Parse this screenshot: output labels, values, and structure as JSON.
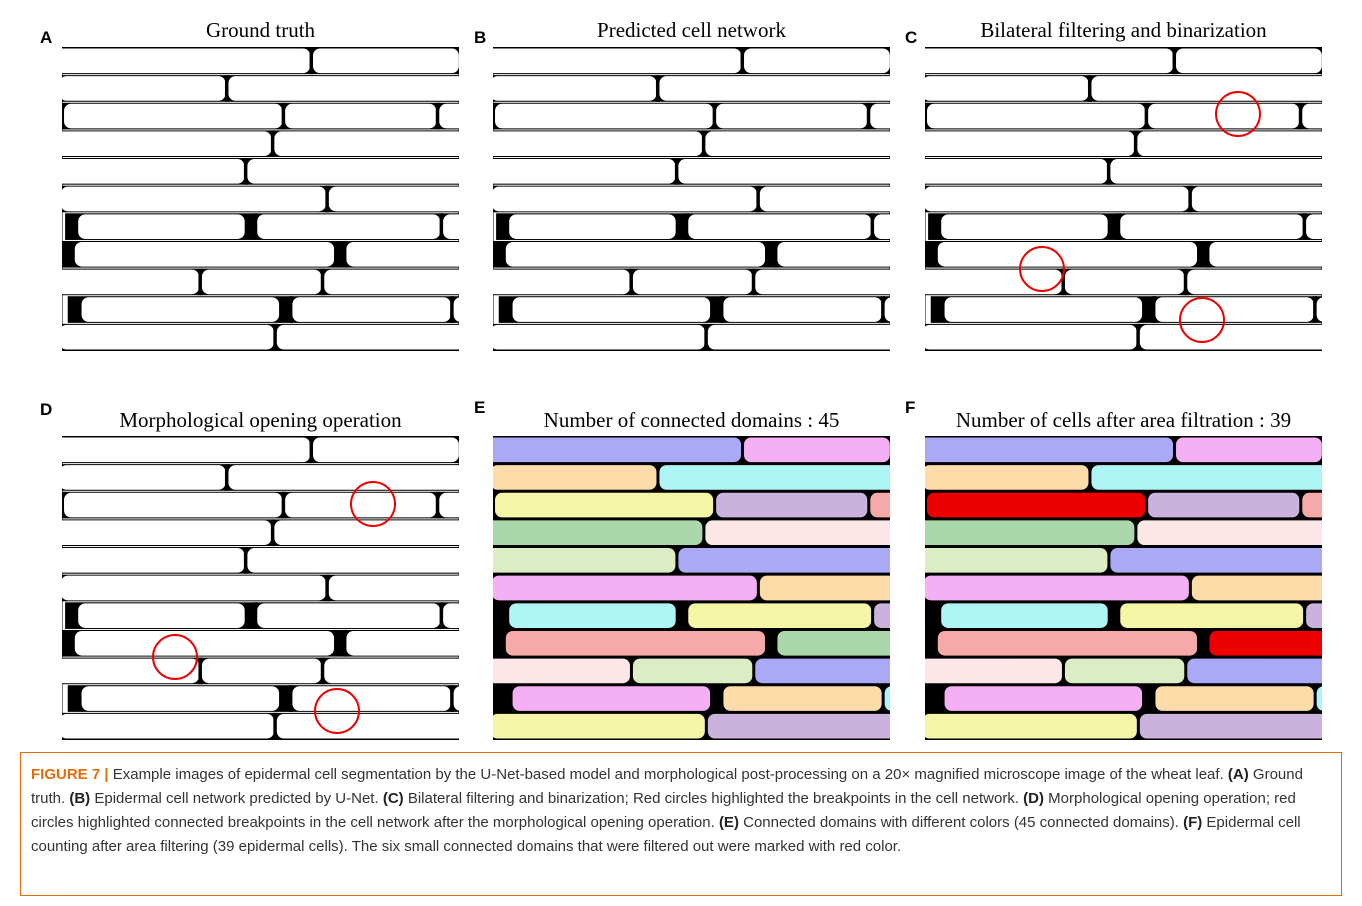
{
  "panels": [
    {
      "letter": "A",
      "title": "Ground truth"
    },
    {
      "letter": "B",
      "title": "Predicted cell network"
    },
    {
      "letter": "C",
      "title": "Bilateral filtering and binarization"
    },
    {
      "letter": "D",
      "title": "Morphological opening operation"
    },
    {
      "letter": "E",
      "title": "Number of connected domains  : 45"
    },
    {
      "letter": "F",
      "title": "Number of cells after area filtration : 39"
    }
  ],
  "caption": {
    "label": "FIGURE 7 |",
    "intro": "Example images of epidermal cell segmentation by the U-Net-based model and morphological post-processing on a 20× magnified microscope image of the wheat leaf.",
    "items": [
      {
        "ref": "(A)",
        "text": "Ground truth."
      },
      {
        "ref": "(B)",
        "text": "Epidermal cell network predicted by U-Net."
      },
      {
        "ref": "(C)",
        "text": "Bilateral filtering and binarization; Red circles highlighted the breakpoints in the cell network."
      },
      {
        "ref": "(D)",
        "text": "Morphological opening operation; red circles highlighted connected breakpoints in the cell network after the morphological opening operation."
      },
      {
        "ref": "(E)",
        "text": "Connected domains with different colors (45 connected domains)."
      },
      {
        "ref": "(F)",
        "text": "Epidermal cell counting after area filtering (39 epidermal cells). The six small connected domains that were filtered out were marked with red color."
      }
    ]
  }
}
